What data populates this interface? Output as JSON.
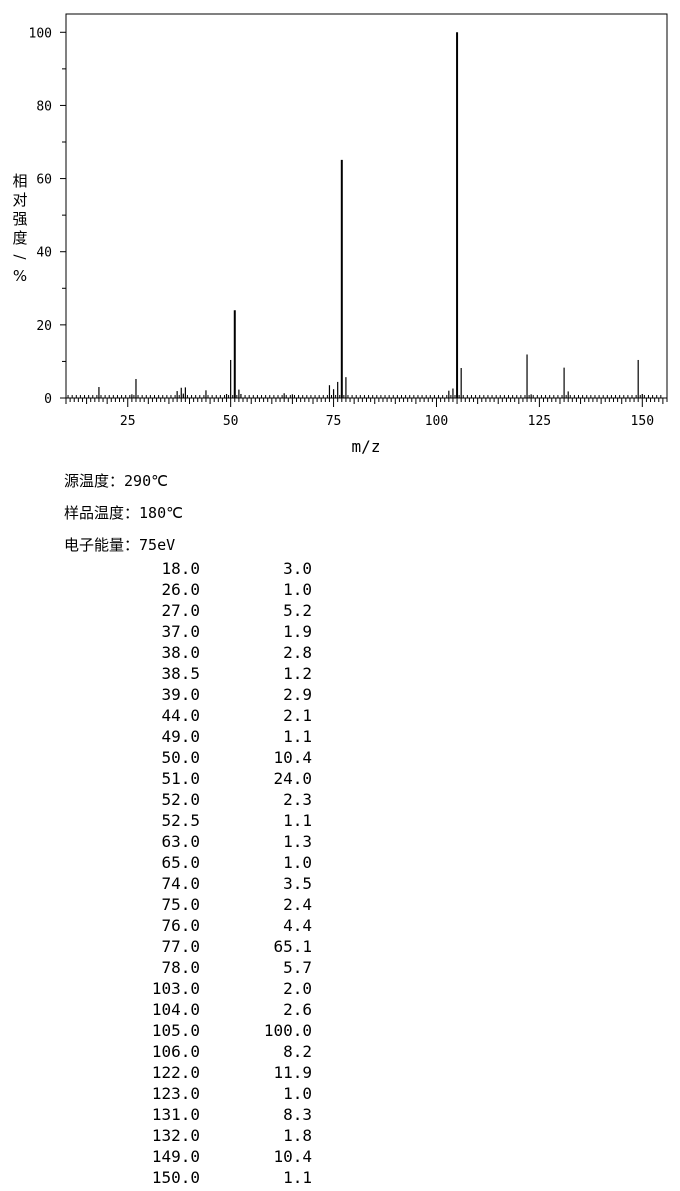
{
  "chart_data": {
    "type": "bar",
    "xlabel": "m/z",
    "ylabel": "相对强度/%",
    "xlim": [
      10,
      156
    ],
    "ylim": [
      0,
      105
    ],
    "x_ticks": [
      25,
      50,
      75,
      100,
      125,
      150
    ],
    "y_ticks": [
      0,
      20,
      40,
      60,
      80,
      100
    ],
    "grid": false,
    "peaks": [
      {
        "mz": 18.0,
        "intensity": 3.0
      },
      {
        "mz": 26.0,
        "intensity": 1.0
      },
      {
        "mz": 27.0,
        "intensity": 5.2
      },
      {
        "mz": 37.0,
        "intensity": 1.9
      },
      {
        "mz": 38.0,
        "intensity": 2.8
      },
      {
        "mz": 38.5,
        "intensity": 1.2
      },
      {
        "mz": 39.0,
        "intensity": 2.9
      },
      {
        "mz": 44.0,
        "intensity": 2.1
      },
      {
        "mz": 49.0,
        "intensity": 1.1
      },
      {
        "mz": 50.0,
        "intensity": 10.4
      },
      {
        "mz": 51.0,
        "intensity": 24.0
      },
      {
        "mz": 52.0,
        "intensity": 2.3
      },
      {
        "mz": 52.5,
        "intensity": 1.1
      },
      {
        "mz": 63.0,
        "intensity": 1.3
      },
      {
        "mz": 65.0,
        "intensity": 1.0
      },
      {
        "mz": 74.0,
        "intensity": 3.5
      },
      {
        "mz": 75.0,
        "intensity": 2.4
      },
      {
        "mz": 76.0,
        "intensity": 4.4
      },
      {
        "mz": 77.0,
        "intensity": 65.1
      },
      {
        "mz": 78.0,
        "intensity": 5.7
      },
      {
        "mz": 103.0,
        "intensity": 2.0
      },
      {
        "mz": 104.0,
        "intensity": 2.6
      },
      {
        "mz": 105.0,
        "intensity": 100.0
      },
      {
        "mz": 106.0,
        "intensity": 8.2
      },
      {
        "mz": 122.0,
        "intensity": 11.9
      },
      {
        "mz": 123.0,
        "intensity": 1.0
      },
      {
        "mz": 131.0,
        "intensity": 8.3
      },
      {
        "mz": 132.0,
        "intensity": 1.8
      },
      {
        "mz": 149.0,
        "intensity": 10.4
      },
      {
        "mz": 150.0,
        "intensity": 1.1
      }
    ]
  },
  "conditions": {
    "source_temp_label": "源温度：",
    "source_temp_value": "290℃",
    "sample_temp_label": "样品温度：",
    "sample_temp_value": "180℃",
    "electron_energy_label": "电子能量：",
    "electron_energy_value": "75eV"
  },
  "table": [
    [
      "18.0",
      "3.0"
    ],
    [
      "26.0",
      "1.0"
    ],
    [
      "27.0",
      "5.2"
    ],
    [
      "37.0",
      "1.9"
    ],
    [
      "38.0",
      "2.8"
    ],
    [
      "38.5",
      "1.2"
    ],
    [
      "39.0",
      "2.9"
    ],
    [
      "44.0",
      "2.1"
    ],
    [
      "49.0",
      "1.1"
    ],
    [
      "50.0",
      "10.4"
    ],
    [
      "51.0",
      "24.0"
    ],
    [
      "52.0",
      "2.3"
    ],
    [
      "52.5",
      "1.1"
    ],
    [
      "63.0",
      "1.3"
    ],
    [
      "65.0",
      "1.0"
    ],
    [
      "74.0",
      "3.5"
    ],
    [
      "75.0",
      "2.4"
    ],
    [
      "76.0",
      "4.4"
    ],
    [
      "77.0",
      "65.1"
    ],
    [
      "78.0",
      "5.7"
    ],
    [
      "103.0",
      "2.0"
    ],
    [
      "104.0",
      "2.6"
    ],
    [
      "105.0",
      "100.0"
    ],
    [
      "106.0",
      "8.2"
    ],
    [
      "122.0",
      "11.9"
    ],
    [
      "123.0",
      "1.0"
    ],
    [
      "131.0",
      "8.3"
    ],
    [
      "132.0",
      "1.8"
    ],
    [
      "149.0",
      "10.4"
    ],
    [
      "150.0",
      "1.1"
    ]
  ]
}
